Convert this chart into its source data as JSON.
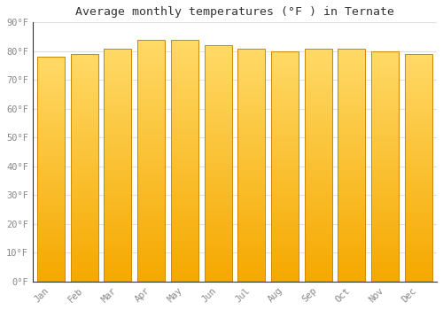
{
  "months": [
    "Jan",
    "Feb",
    "Mar",
    "Apr",
    "May",
    "Jun",
    "Jul",
    "Aug",
    "Sep",
    "Oct",
    "Nov",
    "Dec"
  ],
  "values": [
    78,
    79,
    81,
    84,
    84,
    82,
    81,
    80,
    81,
    81,
    80,
    79
  ],
  "title": "Average monthly temperatures (°F ) in Ternate",
  "ylim": [
    0,
    90
  ],
  "yticks": [
    0,
    10,
    20,
    30,
    40,
    50,
    60,
    70,
    80,
    90
  ],
  "bar_color_bottom": "#F5A800",
  "bar_color_top": "#FFD966",
  "bar_edge_color": "#CC8800",
  "background_color": "#ffffff",
  "plot_bg_color": "#ffffff",
  "grid_color": "#e0e0e0",
  "tick_label_color": "#888888",
  "title_color": "#333333",
  "bar_width": 0.82
}
